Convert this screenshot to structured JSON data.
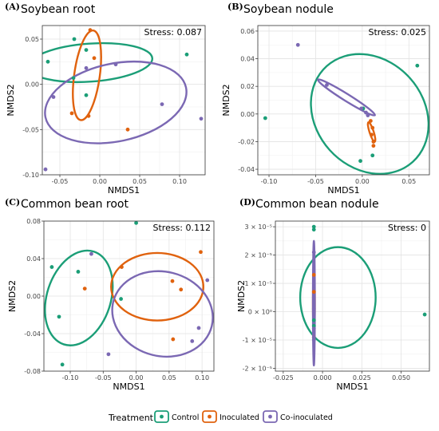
{
  "legend": {
    "title": "Treatment",
    "items": [
      {
        "label": "Control",
        "color": "#1b9e77"
      },
      {
        "label": "Inoculated",
        "color": "#e0620e"
      },
      {
        "label": "Co-inoculated",
        "color": "#7b68b3"
      }
    ]
  },
  "chart_data": [
    {
      "type": "scatter",
      "panel_label": "(A)",
      "title": "Soybean root",
      "stress": "Stress: 0.087",
      "xlabel": "NMDS1",
      "ylabel": "NMDS2",
      "xlim": [
        -0.072,
        0.132
      ],
      "ylim": [
        -0.1,
        0.065
      ],
      "xticks": [
        -0.05,
        0.0,
        0.05,
        0.1
      ],
      "xtick_labels": [
        "-0.05",
        "0.00",
        "0.05",
        "0.10"
      ],
      "yticks": [
        -0.1,
        -0.05,
        0.0,
        0.05
      ],
      "ytick_labels": [
        "-0.10",
        "-0.05",
        "0.00",
        "0.05"
      ],
      "grid": true,
      "series": [
        {
          "name": "Control",
          "points": [
            [
              -0.065,
              0.025
            ],
            [
              -0.032,
              0.05
            ],
            [
              -0.033,
              0.007
            ],
            [
              -0.017,
              0.038
            ],
            [
              -0.017,
              -0.012
            ],
            [
              0.109,
              0.033
            ]
          ]
        },
        {
          "name": "Inoculated",
          "points": [
            [
              -0.012,
              0.06
            ],
            [
              -0.007,
              0.029
            ],
            [
              -0.014,
              -0.035
            ],
            [
              -0.035,
              -0.032
            ],
            [
              0.035,
              -0.05
            ]
          ]
        },
        {
          "name": "Co-inoculated",
          "points": [
            [
              -0.058,
              -0.014
            ],
            [
              -0.017,
              0.018
            ],
            [
              0.02,
              0.022
            ],
            [
              0.078,
              -0.022
            ],
            [
              0.127,
              -0.038
            ],
            [
              -0.068,
              -0.094
            ]
          ]
        }
      ],
      "ellipses": [
        {
          "series": "Control",
          "center": [
            -0.012,
            0.024
          ],
          "rx": 0.078,
          "ry": 0.021,
          "angle_deg": 4
        },
        {
          "series": "Inoculated",
          "center": [
            -0.016,
            0.01
          ],
          "rx": 0.016,
          "ry": 0.05,
          "angle_deg": -8
        },
        {
          "series": "Co-inoculated",
          "center": [
            0.02,
            -0.02
          ],
          "rx": 0.09,
          "ry": 0.043,
          "angle_deg": 12
        }
      ]
    },
    {
      "type": "scatter",
      "panel_label": "(B)",
      "title": "Soybean nodule",
      "stress": "Stress: 0.025",
      "xlabel": "NMDS1",
      "ylabel": "NMDS2",
      "xlim": [
        -0.112,
        0.072
      ],
      "ylim": [
        -0.044,
        0.064
      ],
      "xticks": [
        -0.1,
        -0.05,
        0.0,
        0.05
      ],
      "xtick_labels": [
        "-0.10",
        "-0.05",
        "0.00",
        "0.05"
      ],
      "yticks": [
        -0.04,
        -0.02,
        0.0,
        0.02,
        0.04,
        0.06
      ],
      "ytick_labels": [
        "-0.04",
        "-0.02",
        "0.00",
        "0.02",
        "0.04",
        "0.06"
      ],
      "grid": true,
      "series": [
        {
          "name": "Control",
          "points": [
            [
              -0.104,
              -0.003
            ],
            [
              0.059,
              0.035
            ],
            [
              0.011,
              -0.03
            ],
            [
              -0.002,
              -0.034
            ],
            [
              0.001,
              0.004
            ]
          ]
        },
        {
          "name": "Inoculated",
          "points": [
            [
              0.009,
              -0.005
            ],
            [
              0.011,
              -0.01
            ],
            [
              0.012,
              -0.02
            ],
            [
              0.012,
              -0.023
            ],
            [
              0.01,
              -0.015
            ]
          ]
        },
        {
          "name": "Co-inoculated",
          "points": [
            [
              -0.069,
              0.05
            ],
            [
              -0.038,
              0.021
            ],
            [
              -0.001,
              0.004
            ],
            [
              0.004,
              0.001
            ],
            [
              0.006,
              -0.001
            ]
          ]
        }
      ],
      "ellipses": [
        {
          "series": "Control",
          "center": [
            0.008,
            0.0
          ],
          "rx": 0.069,
          "ry": 0.039,
          "angle_deg": -48
        },
        {
          "series": "Inoculated",
          "center": [
            0.01,
            -0.013
          ],
          "rx": 0.011,
          "ry": 0.0015,
          "angle_deg": -72
        },
        {
          "series": "Co-inoculated",
          "center": [
            -0.017,
            0.012
          ],
          "rx": 0.036,
          "ry": 0.0025,
          "angle_deg": -32
        }
      ]
    },
    {
      "type": "scatter",
      "panel_label": "(C)",
      "title": "Common bean root",
      "stress": "Stress: 0.112",
      "xlabel": "NMDS1",
      "ylabel": "NMDS2",
      "xlim": [
        -0.14,
        0.118
      ],
      "ylim": [
        -0.08,
        0.08
      ],
      "xticks": [
        -0.1,
        -0.05,
        0.0,
        0.05,
        0.1
      ],
      "xtick_labels": [
        "-0.10",
        "-0.05",
        "0.00",
        "0.05",
        "0.10"
      ],
      "yticks": [
        -0.08,
        -0.04,
        0.0,
        0.04,
        0.08
      ],
      "ytick_labels": [
        "-0.08",
        "-0.04",
        "0.00",
        "0.04",
        "0.08"
      ],
      "grid": true,
      "series": [
        {
          "name": "Control",
          "points": [
            [
              0.0,
              0.078
            ],
            [
              -0.128,
              0.031
            ],
            [
              -0.088,
              0.026
            ],
            [
              -0.117,
              -0.022
            ],
            [
              -0.112,
              -0.073
            ],
            [
              -0.023,
              -0.003
            ]
          ]
        },
        {
          "name": "Inoculated",
          "points": [
            [
              -0.078,
              0.008
            ],
            [
              -0.022,
              0.031
            ],
            [
              0.098,
              0.047
            ],
            [
              0.055,
              0.016
            ],
            [
              0.068,
              0.007
            ],
            [
              0.056,
              -0.046
            ]
          ]
        },
        {
          "name": "Co-inoculated",
          "points": [
            [
              -0.068,
              0.045
            ],
            [
              0.108,
              0.017
            ],
            [
              0.095,
              -0.034
            ],
            [
              0.085,
              -0.048
            ],
            [
              -0.042,
              -0.062
            ]
          ]
        }
      ],
      "ellipses": [
        {
          "series": "Control",
          "center": [
            -0.087,
            -0.002
          ],
          "rx": 0.074,
          "ry": 0.034,
          "angle_deg": 72
        },
        {
          "series": "Inoculated",
          "center": [
            0.032,
            0.01
          ],
          "rx": 0.07,
          "ry": 0.036,
          "angle_deg": 0
        },
        {
          "series": "Co-inoculated",
          "center": [
            0.04,
            -0.019
          ],
          "rx": 0.077,
          "ry": 0.045,
          "angle_deg": -14
        }
      ]
    },
    {
      "type": "scatter",
      "panel_label": "(D)",
      "title": "Common bean nodule",
      "stress": "Stress: 0",
      "xlabel": "NMDS1",
      "ylabel": "NMDS2",
      "xlim": [
        -0.03,
        0.068
      ],
      "ylim": [
        -2.1e-05,
        3.2e-05
      ],
      "xticks": [
        -0.025,
        0.0,
        0.025,
        0.05
      ],
      "xtick_labels": [
        "-0.025",
        "0.000",
        "0.025",
        "0.050"
      ],
      "yticks": [
        -2e-05,
        -1e-05,
        0.0,
        1e-05,
        2e-05,
        3e-05
      ],
      "ytick_labels": [
        "-2 × 10⁻⁵",
        "-1 × 10⁻⁵",
        "0 × 10⁰",
        "1 × 10⁻⁵",
        "2 × 10⁻⁵",
        "3 × 10⁻⁵"
      ],
      "grid": true,
      "series": [
        {
          "name": "Control",
          "points": [
            [
              -0.0055,
              3e-05
            ],
            [
              -0.0055,
              2.9e-05
            ],
            [
              -0.0055,
              -3e-06
            ],
            [
              -0.0055,
              -5e-06
            ],
            [
              0.065,
              -1e-06
            ]
          ]
        },
        {
          "name": "Inoculated",
          "points": [
            [
              -0.0055,
              1.3e-05
            ],
            [
              -0.0055,
              7e-06
            ],
            [
              -0.0055,
              -9e-06
            ]
          ]
        },
        {
          "name": "Co-inoculated",
          "points": [
            [
              -0.0055,
              2.1e-05
            ],
            [
              -0.0055,
              1e-06
            ],
            [
              -0.0055,
              -6e-06
            ],
            [
              -0.0055,
              -9e-06
            ],
            [
              -0.0055,
              -1e-05
            ]
          ]
        }
      ],
      "ellipses": [
        {
          "series": "Control",
          "center": [
            0.0098,
            5e-06
          ],
          "rx": 0.024,
          "ry": 1.78e-05,
          "angle_deg": 0
        },
        {
          "series": "Inoculated",
          "center": [
            -0.0055,
            3e-06
          ],
          "rx": 0.0003,
          "ry": 1e-05,
          "angle_deg": 0
        },
        {
          "series": "Co-inoculated",
          "center": [
            -0.0055,
            3e-06
          ],
          "rx": 0.0003,
          "ry": 2.2e-05,
          "angle_deg": 0
        }
      ]
    }
  ]
}
